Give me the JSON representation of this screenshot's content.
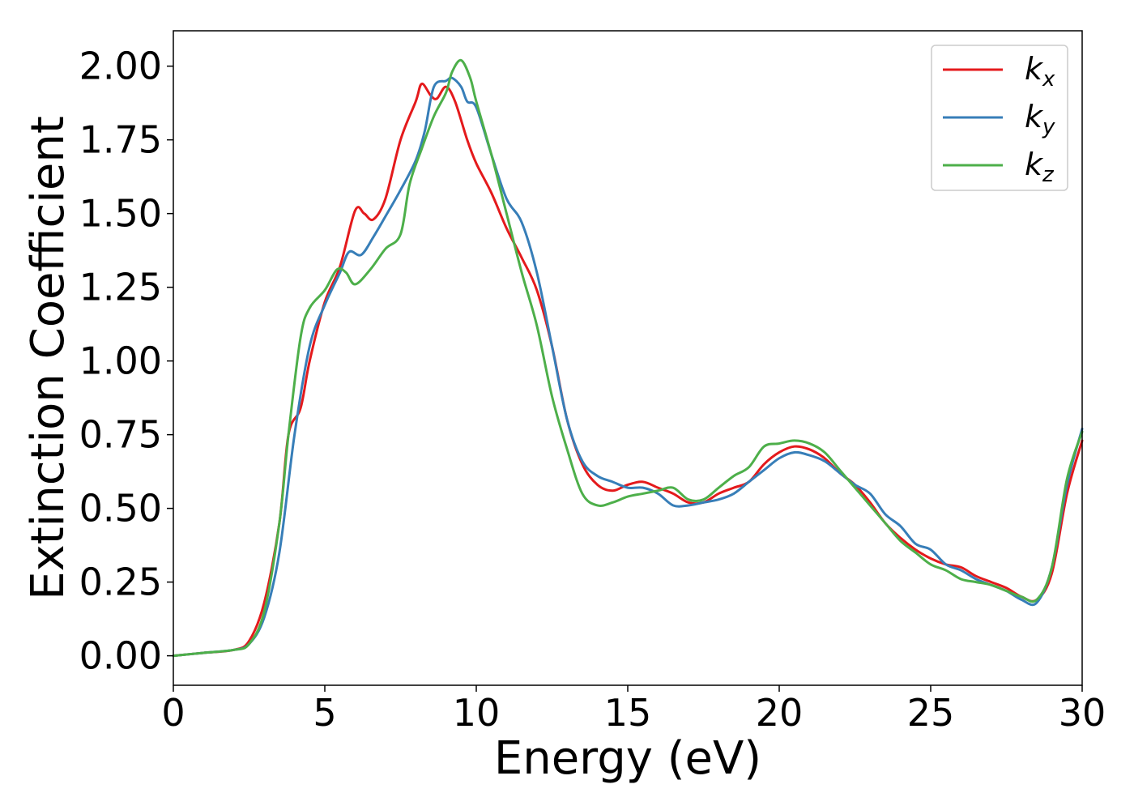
{
  "chart_data": {
    "type": "line",
    "title": "",
    "xlabel": "Energy (eV)",
    "ylabel": "Extinction Coefficient",
    "xlim": [
      0,
      30
    ],
    "ylim": [
      -0.1,
      2.12
    ],
    "grid": false,
    "legend_position": "top-right",
    "x_ticks": [
      {
        "value": 0,
        "label": "0"
      },
      {
        "value": 5,
        "label": "5"
      },
      {
        "value": 10,
        "label": "10"
      },
      {
        "value": 15,
        "label": "15"
      },
      {
        "value": 20,
        "label": "20"
      },
      {
        "value": 25,
        "label": "25"
      },
      {
        "value": 30,
        "label": "30"
      }
    ],
    "y_ticks": [
      {
        "value": 0.0,
        "label": "0.00"
      },
      {
        "value": 0.25,
        "label": "0.25"
      },
      {
        "value": 0.5,
        "label": "0.50"
      },
      {
        "value": 0.75,
        "label": "0.75"
      },
      {
        "value": 1.0,
        "label": "1.00"
      },
      {
        "value": 1.25,
        "label": "1.25"
      },
      {
        "value": 1.5,
        "label": "1.50"
      },
      {
        "value": 1.75,
        "label": "1.75"
      },
      {
        "value": 2.0,
        "label": "2.00"
      }
    ],
    "series": [
      {
        "name": "k_x",
        "label_main": "k",
        "label_sub": "x",
        "color": "#e41a1c",
        "points": [
          [
            0,
            0.0
          ],
          [
            1,
            0.01
          ],
          [
            2,
            0.02
          ],
          [
            2.5,
            0.05
          ],
          [
            3,
            0.18
          ],
          [
            3.5,
            0.45
          ],
          [
            3.8,
            0.75
          ],
          [
            4.2,
            0.84
          ],
          [
            4.5,
            1.0
          ],
          [
            5,
            1.2
          ],
          [
            5.5,
            1.32
          ],
          [
            6,
            1.51
          ],
          [
            6.3,
            1.5
          ],
          [
            6.6,
            1.48
          ],
          [
            7,
            1.55
          ],
          [
            7.5,
            1.75
          ],
          [
            8,
            1.88
          ],
          [
            8.2,
            1.94
          ],
          [
            8.5,
            1.9
          ],
          [
            8.7,
            1.89
          ],
          [
            9.0,
            1.93
          ],
          [
            9.3,
            1.88
          ],
          [
            9.7,
            1.75
          ],
          [
            10,
            1.67
          ],
          [
            10.5,
            1.57
          ],
          [
            11,
            1.45
          ],
          [
            11.5,
            1.35
          ],
          [
            12,
            1.24
          ],
          [
            12.5,
            1.05
          ],
          [
            13,
            0.8
          ],
          [
            13.5,
            0.65
          ],
          [
            14,
            0.58
          ],
          [
            14.5,
            0.56
          ],
          [
            15,
            0.58
          ],
          [
            15.5,
            0.59
          ],
          [
            16,
            0.57
          ],
          [
            16.5,
            0.55
          ],
          [
            17,
            0.52
          ],
          [
            17.5,
            0.52
          ],
          [
            18,
            0.55
          ],
          [
            18.5,
            0.57
          ],
          [
            19,
            0.59
          ],
          [
            19.5,
            0.65
          ],
          [
            20,
            0.69
          ],
          [
            20.5,
            0.71
          ],
          [
            21,
            0.7
          ],
          [
            21.5,
            0.67
          ],
          [
            22,
            0.62
          ],
          [
            22.5,
            0.58
          ],
          [
            23,
            0.52
          ],
          [
            23.5,
            0.45
          ],
          [
            24,
            0.4
          ],
          [
            24.5,
            0.36
          ],
          [
            25,
            0.33
          ],
          [
            25.5,
            0.31
          ],
          [
            26,
            0.3
          ],
          [
            26.5,
            0.27
          ],
          [
            27,
            0.25
          ],
          [
            27.5,
            0.23
          ],
          [
            28,
            0.2
          ],
          [
            28.5,
            0.19
          ],
          [
            29,
            0.28
          ],
          [
            29.5,
            0.55
          ],
          [
            30,
            0.73
          ]
        ]
      },
      {
        "name": "k_y",
        "label_main": "k",
        "label_sub": "y",
        "color": "#377eb8",
        "points": [
          [
            0,
            0.0
          ],
          [
            1,
            0.01
          ],
          [
            2,
            0.02
          ],
          [
            2.5,
            0.04
          ],
          [
            3,
            0.13
          ],
          [
            3.5,
            0.35
          ],
          [
            4,
            0.75
          ],
          [
            4.5,
            1.05
          ],
          [
            5,
            1.19
          ],
          [
            5.5,
            1.3
          ],
          [
            5.8,
            1.37
          ],
          [
            6.2,
            1.36
          ],
          [
            6.6,
            1.42
          ],
          [
            7,
            1.49
          ],
          [
            7.5,
            1.58
          ],
          [
            8,
            1.68
          ],
          [
            8.3,
            1.78
          ],
          [
            8.6,
            1.93
          ],
          [
            9,
            1.95
          ],
          [
            9.2,
            1.96
          ],
          [
            9.5,
            1.93
          ],
          [
            9.7,
            1.88
          ],
          [
            10,
            1.86
          ],
          [
            10.5,
            1.7
          ],
          [
            11,
            1.55
          ],
          [
            11.5,
            1.47
          ],
          [
            12,
            1.3
          ],
          [
            12.5,
            1.05
          ],
          [
            13,
            0.8
          ],
          [
            13.5,
            0.66
          ],
          [
            14,
            0.61
          ],
          [
            14.5,
            0.59
          ],
          [
            15,
            0.57
          ],
          [
            15.5,
            0.57
          ],
          [
            16,
            0.55
          ],
          [
            16.5,
            0.51
          ],
          [
            17,
            0.51
          ],
          [
            17.5,
            0.52
          ],
          [
            18,
            0.53
          ],
          [
            18.5,
            0.55
          ],
          [
            19,
            0.59
          ],
          [
            19.5,
            0.63
          ],
          [
            20,
            0.67
          ],
          [
            20.5,
            0.69
          ],
          [
            21,
            0.68
          ],
          [
            21.5,
            0.66
          ],
          [
            22,
            0.62
          ],
          [
            22.5,
            0.58
          ],
          [
            23,
            0.55
          ],
          [
            23.5,
            0.48
          ],
          [
            24,
            0.44
          ],
          [
            24.5,
            0.38
          ],
          [
            25,
            0.36
          ],
          [
            25.5,
            0.31
          ],
          [
            26,
            0.29
          ],
          [
            26.5,
            0.26
          ],
          [
            27,
            0.24
          ],
          [
            27.5,
            0.22
          ],
          [
            28,
            0.19
          ],
          [
            28.5,
            0.18
          ],
          [
            29,
            0.3
          ],
          [
            29.5,
            0.58
          ],
          [
            30,
            0.77
          ]
        ]
      },
      {
        "name": "k_z",
        "label_main": "k",
        "label_sub": "z",
        "color": "#4daf4a",
        "points": [
          [
            0,
            0.0
          ],
          [
            1,
            0.01
          ],
          [
            2,
            0.02
          ],
          [
            2.5,
            0.04
          ],
          [
            3,
            0.15
          ],
          [
            3.5,
            0.45
          ],
          [
            3.8,
            0.75
          ],
          [
            4.2,
            1.08
          ],
          [
            4.5,
            1.18
          ],
          [
            5,
            1.24
          ],
          [
            5.4,
            1.31
          ],
          [
            5.7,
            1.3
          ],
          [
            6,
            1.26
          ],
          [
            6.5,
            1.31
          ],
          [
            7,
            1.38
          ],
          [
            7.5,
            1.43
          ],
          [
            7.8,
            1.6
          ],
          [
            8.2,
            1.72
          ],
          [
            8.6,
            1.83
          ],
          [
            9,
            1.91
          ],
          [
            9.2,
            1.98
          ],
          [
            9.5,
            2.02
          ],
          [
            9.8,
            1.96
          ],
          [
            10,
            1.88
          ],
          [
            10.5,
            1.7
          ],
          [
            11,
            1.5
          ],
          [
            11.5,
            1.3
          ],
          [
            12,
            1.12
          ],
          [
            12.5,
            0.88
          ],
          [
            13,
            0.7
          ],
          [
            13.5,
            0.55
          ],
          [
            14,
            0.51
          ],
          [
            14.5,
            0.52
          ],
          [
            15,
            0.54
          ],
          [
            15.5,
            0.55
          ],
          [
            16,
            0.56
          ],
          [
            16.5,
            0.57
          ],
          [
            17,
            0.53
          ],
          [
            17.5,
            0.53
          ],
          [
            18,
            0.57
          ],
          [
            18.5,
            0.61
          ],
          [
            19,
            0.64
          ],
          [
            19.5,
            0.71
          ],
          [
            20,
            0.72
          ],
          [
            20.5,
            0.73
          ],
          [
            21,
            0.72
          ],
          [
            21.5,
            0.69
          ],
          [
            22,
            0.63
          ],
          [
            22.5,
            0.57
          ],
          [
            23,
            0.51
          ],
          [
            23.5,
            0.45
          ],
          [
            24,
            0.39
          ],
          [
            24.5,
            0.35
          ],
          [
            25,
            0.31
          ],
          [
            25.5,
            0.29
          ],
          [
            26,
            0.26
          ],
          [
            26.5,
            0.25
          ],
          [
            27,
            0.24
          ],
          [
            27.5,
            0.22
          ],
          [
            28,
            0.2
          ],
          [
            28.5,
            0.19
          ],
          [
            29,
            0.3
          ],
          [
            29.5,
            0.6
          ],
          [
            30,
            0.76
          ]
        ]
      }
    ]
  }
}
